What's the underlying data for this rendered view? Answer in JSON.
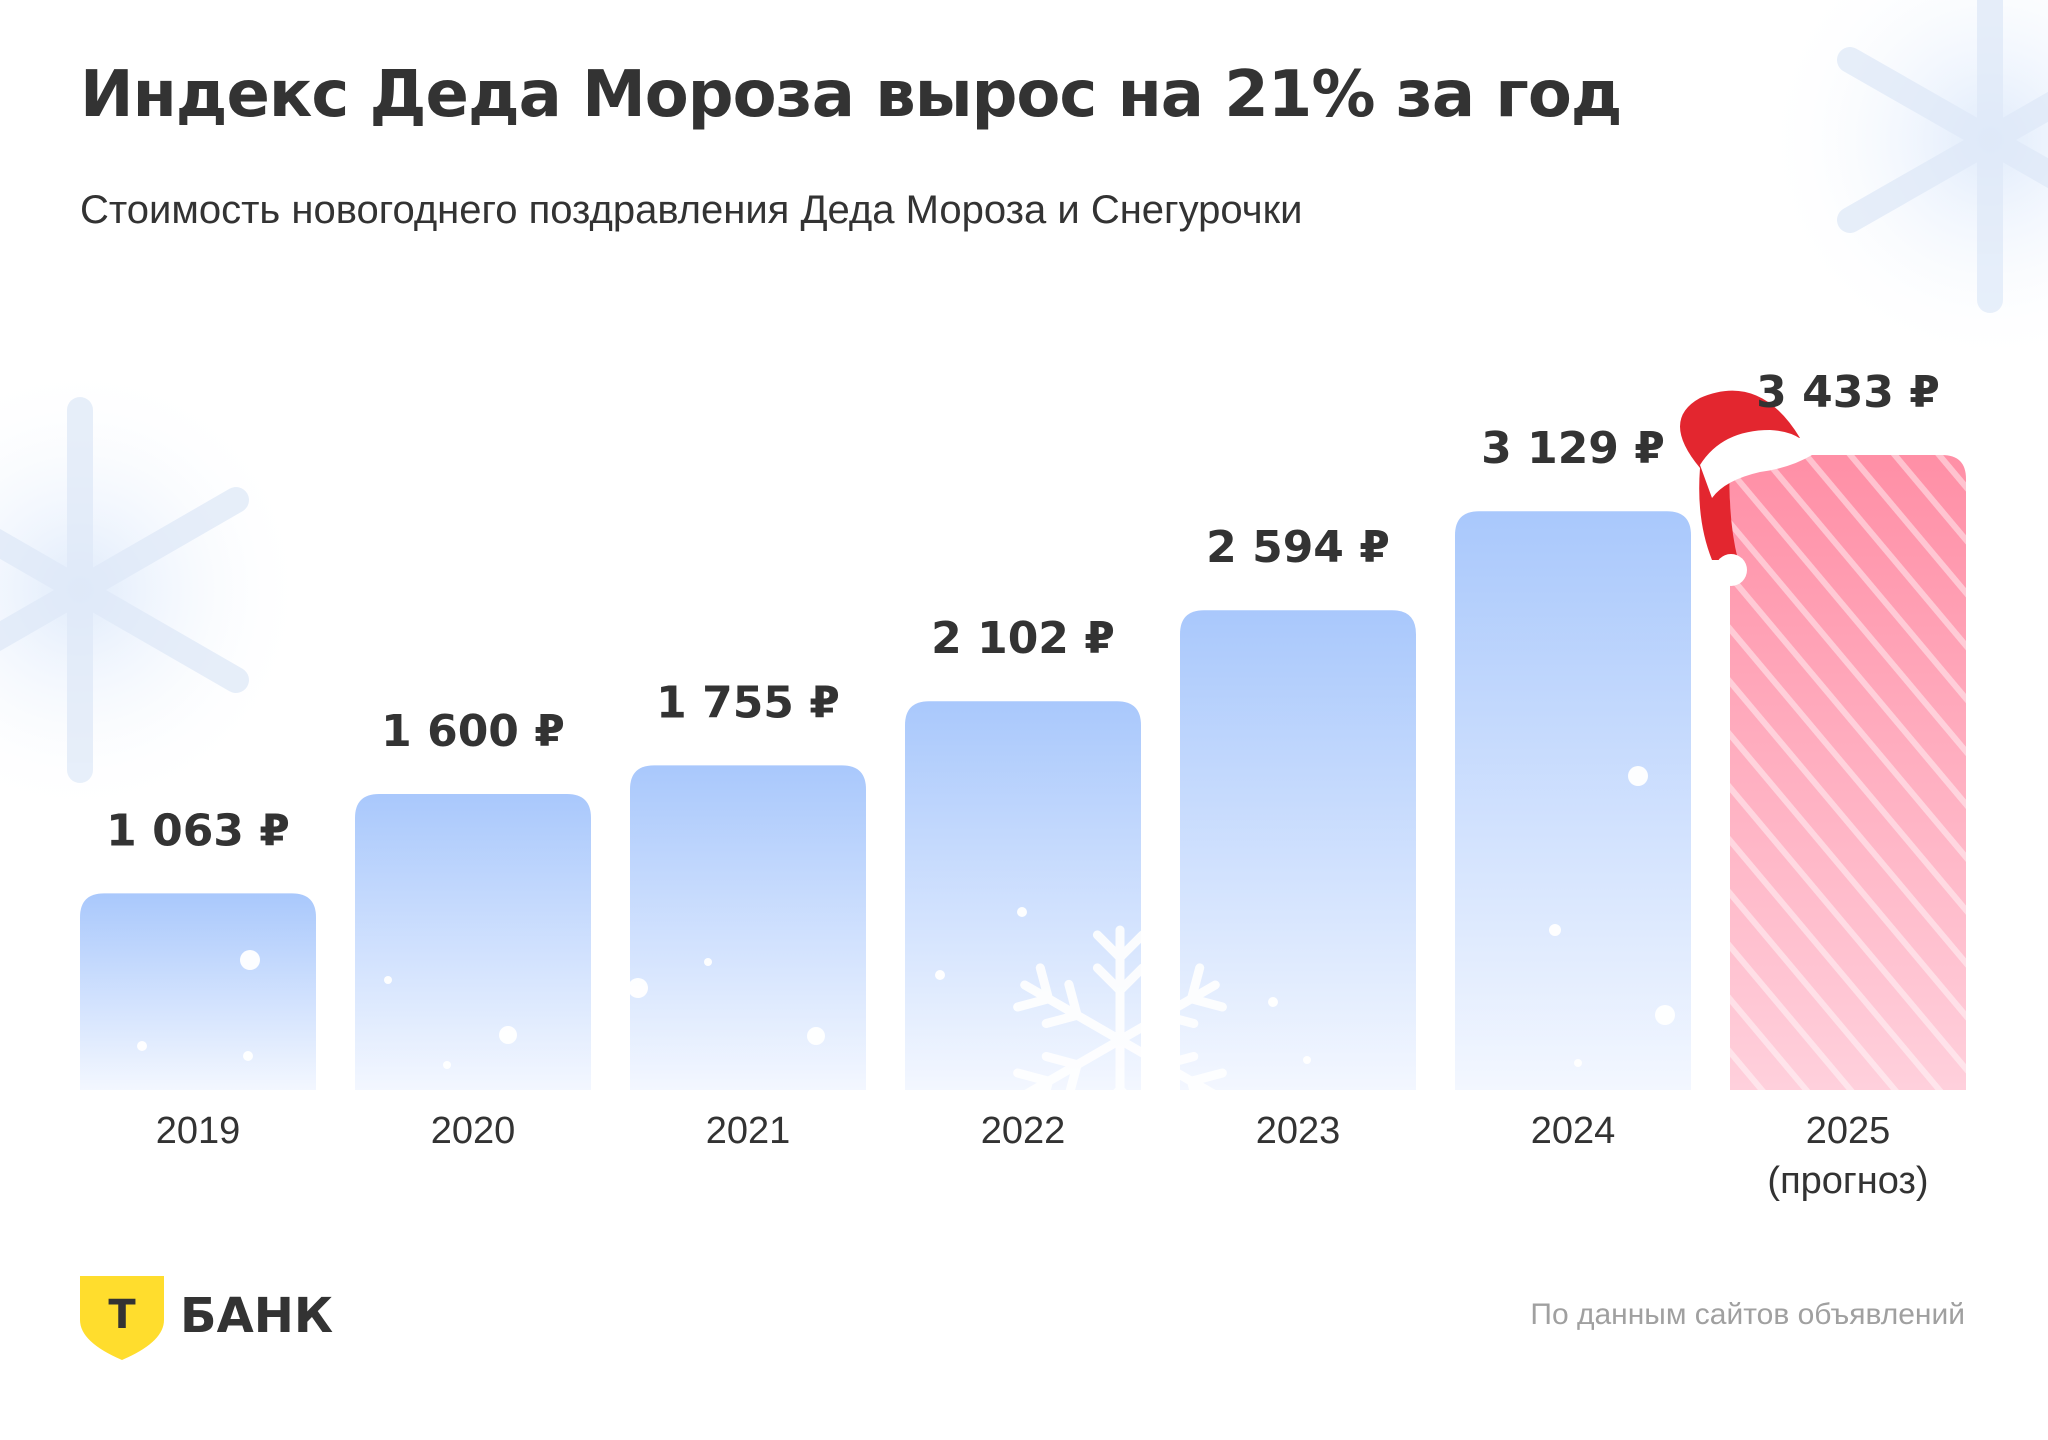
{
  "title": "Индекс Деда Мороза вырос на 21% за год",
  "subtitle": "Стоимость новогоднего поздравления Деда Мороза и Снегурочки",
  "source": "По данным сайтов объявлений",
  "logo": {
    "text": "БАНК",
    "mark_letter": "Т",
    "mark_color": "#FFDD2D"
  },
  "colors": {
    "bar_top": "#A9C8FC",
    "bar_bottom": "#F3F7FF",
    "forecast_top": "#FF8FA6",
    "forecast_bottom": "#FFD0DC",
    "text": "#333333"
  },
  "chart_data": {
    "type": "bar",
    "categories": [
      "2019",
      "2020",
      "2021",
      "2022",
      "2023",
      "2024",
      "2025"
    ],
    "category_notes": [
      "",
      "",
      "",
      "",
      "",
      "",
      "(прогноз)"
    ],
    "values": [
      1063,
      1600,
      1755,
      2102,
      2594,
      3129,
      3433
    ],
    "value_labels": [
      "1 063 ₽",
      "1 600 ₽",
      "1 755 ₽",
      "2 102 ₽",
      "2 594 ₽",
      "3 129 ₽",
      "3 433 ₽"
    ],
    "forecast": [
      false,
      false,
      false,
      false,
      false,
      false,
      true
    ],
    "unit": "₽",
    "ylim": [
      0,
      3433
    ],
    "grid": false,
    "legend": "none"
  }
}
